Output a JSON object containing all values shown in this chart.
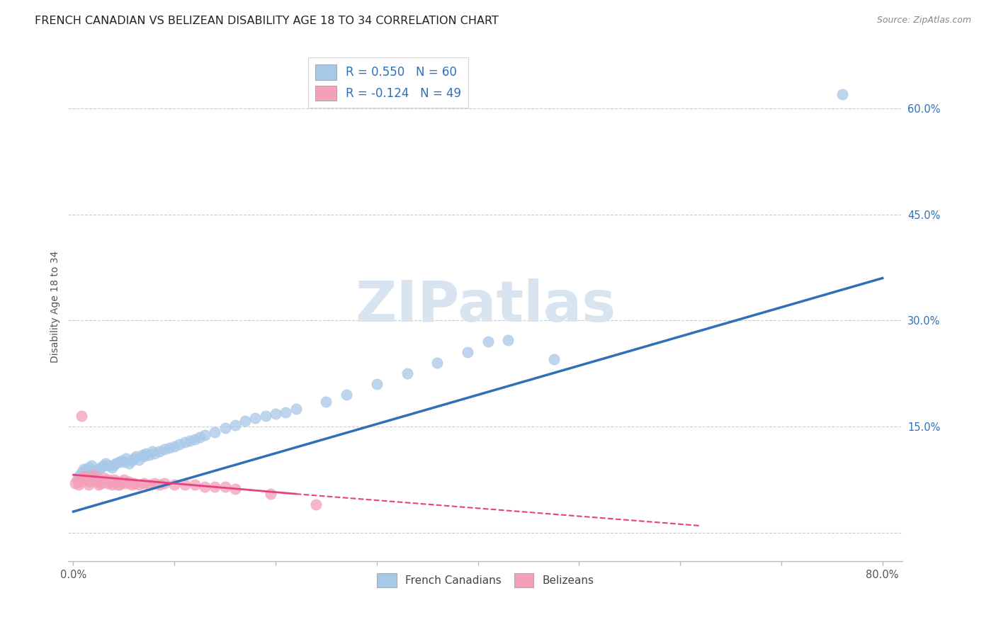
{
  "title": "FRENCH CANADIAN VS BELIZEAN DISABILITY AGE 18 TO 34 CORRELATION CHART",
  "source": "Source: ZipAtlas.com",
  "ylabel": "Disability Age 18 to 34",
  "xlim": [
    -0.005,
    0.82
  ],
  "ylim": [
    -0.04,
    0.68
  ],
  "yticks_right": [
    0.0,
    0.15,
    0.3,
    0.45,
    0.6
  ],
  "yticklabels_right": [
    "",
    "15.0%",
    "30.0%",
    "45.0%",
    "60.0%"
  ],
  "r_blue": 0.55,
  "n_blue": 60,
  "r_pink": -0.124,
  "n_pink": 49,
  "blue_color": "#a8c8e8",
  "pink_color": "#f4a0b8",
  "blue_line_color": "#3070b8",
  "pink_line_color": "#e84080",
  "watermark_color": "#d8e4f0",
  "legend_label_blue": "French Canadians",
  "legend_label_pink": "Belizeans",
  "blue_scatter_x": [
    0.005,
    0.008,
    0.01,
    0.012,
    0.015,
    0.018,
    0.02,
    0.022,
    0.025,
    0.028,
    0.03,
    0.032,
    0.035,
    0.038,
    0.04,
    0.042,
    0.045,
    0.048,
    0.05,
    0.052,
    0.055,
    0.058,
    0.06,
    0.062,
    0.065,
    0.068,
    0.07,
    0.072,
    0.075,
    0.078,
    0.08,
    0.085,
    0.09,
    0.095,
    0.1,
    0.105,
    0.11,
    0.115,
    0.12,
    0.125,
    0.13,
    0.14,
    0.15,
    0.16,
    0.17,
    0.18,
    0.19,
    0.2,
    0.21,
    0.22,
    0.25,
    0.27,
    0.3,
    0.33,
    0.36,
    0.39,
    0.43,
    0.475,
    0.76,
    0.41
  ],
  "blue_scatter_y": [
    0.08,
    0.085,
    0.09,
    0.088,
    0.092,
    0.095,
    0.085,
    0.088,
    0.09,
    0.093,
    0.095,
    0.098,
    0.095,
    0.092,
    0.096,
    0.098,
    0.1,
    0.102,
    0.1,
    0.105,
    0.098,
    0.102,
    0.105,
    0.108,
    0.103,
    0.11,
    0.108,
    0.112,
    0.11,
    0.115,
    0.112,
    0.115,
    0.118,
    0.12,
    0.122,
    0.125,
    0.128,
    0.13,
    0.132,
    0.135,
    0.138,
    0.142,
    0.148,
    0.152,
    0.158,
    0.162,
    0.165,
    0.168,
    0.17,
    0.175,
    0.185,
    0.195,
    0.21,
    0.225,
    0.24,
    0.255,
    0.272,
    0.245,
    0.62,
    0.27
  ],
  "pink_scatter_x": [
    0.002,
    0.004,
    0.005,
    0.006,
    0.008,
    0.01,
    0.012,
    0.014,
    0.015,
    0.016,
    0.018,
    0.02,
    0.022,
    0.024,
    0.025,
    0.026,
    0.028,
    0.03,
    0.032,
    0.034,
    0.035,
    0.036,
    0.038,
    0.04,
    0.042,
    0.044,
    0.045,
    0.046,
    0.048,
    0.05,
    0.052,
    0.055,
    0.058,
    0.06,
    0.065,
    0.07,
    0.075,
    0.08,
    0.085,
    0.09,
    0.1,
    0.11,
    0.12,
    0.13,
    0.14,
    0.15,
    0.16,
    0.195,
    0.24
  ],
  "pink_scatter_y": [
    0.07,
    0.075,
    0.068,
    0.072,
    0.165,
    0.08,
    0.078,
    0.074,
    0.068,
    0.072,
    0.078,
    0.082,
    0.076,
    0.072,
    0.068,
    0.075,
    0.07,
    0.078,
    0.074,
    0.07,
    0.075,
    0.072,
    0.068,
    0.075,
    0.072,
    0.068,
    0.072,
    0.068,
    0.072,
    0.075,
    0.07,
    0.072,
    0.068,
    0.07,
    0.068,
    0.07,
    0.068,
    0.07,
    0.068,
    0.07,
    0.068,
    0.068,
    0.068,
    0.065,
    0.065,
    0.065,
    0.062,
    0.055,
    0.04
  ],
  "background_color": "#ffffff",
  "grid_color": "#cccccc",
  "title_fontsize": 11.5,
  "axis_fontsize": 10,
  "tick_fontsize": 10.5
}
